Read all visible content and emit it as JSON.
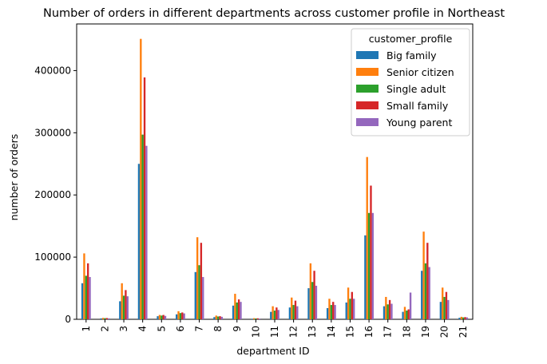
{
  "chart_data": {
    "type": "bar",
    "title": "Number of orders in different departments across customer profile in Northeast",
    "xlabel": "department ID",
    "ylabel": "number of orders",
    "categories": [
      "1",
      "2",
      "3",
      "4",
      "5",
      "6",
      "7",
      "8",
      "9",
      "10",
      "11",
      "12",
      "13",
      "14",
      "15",
      "16",
      "17",
      "18",
      "19",
      "20",
      "21"
    ],
    "ylim": [
      0,
      475000
    ],
    "yticks": [
      0,
      100000,
      200000,
      300000,
      400000
    ],
    "legend": {
      "title": "customer_profile",
      "position": "top-right"
    },
    "series": [
      {
        "name": "Big family",
        "color": "#1f77b4",
        "values": [
          58000,
          1500,
          29000,
          250000,
          5000,
          8000,
          76000,
          3500,
          22000,
          1000,
          12000,
          19000,
          50000,
          18000,
          27000,
          135000,
          21000,
          12000,
          78000,
          28000,
          2500
        ]
      },
      {
        "name": "Senior citizen",
        "color": "#ff7f0e",
        "values": [
          106000,
          2300,
          58000,
          451000,
          7000,
          13000,
          132000,
          6000,
          41000,
          1800,
          21000,
          35000,
          90000,
          33000,
          51000,
          261000,
          36000,
          20000,
          141000,
          51000,
          4000
        ]
      },
      {
        "name": "Single adult",
        "color": "#2ca02c",
        "values": [
          70000,
          1800,
          38000,
          297000,
          6000,
          10000,
          87000,
          4500,
          27000,
          1400,
          14000,
          23000,
          60000,
          23000,
          33000,
          171000,
          24000,
          14000,
          90000,
          36000,
          3000
        ]
      },
      {
        "name": "Small family",
        "color": "#d62728",
        "values": [
          90000,
          2000,
          47000,
          389000,
          7000,
          11000,
          123000,
          5000,
          32000,
          1600,
          19000,
          30000,
          78000,
          28000,
          44000,
          215000,
          31000,
          16000,
          123000,
          44000,
          3500
        ]
      },
      {
        "name": "Young parent",
        "color": "#9467bd",
        "values": [
          68000,
          1600,
          37000,
          279000,
          5500,
          9500,
          68000,
          4000,
          28000,
          1200,
          15000,
          21000,
          54000,
          23000,
          33000,
          171000,
          25000,
          43000,
          84000,
          31000,
          3000
        ]
      }
    ]
  }
}
